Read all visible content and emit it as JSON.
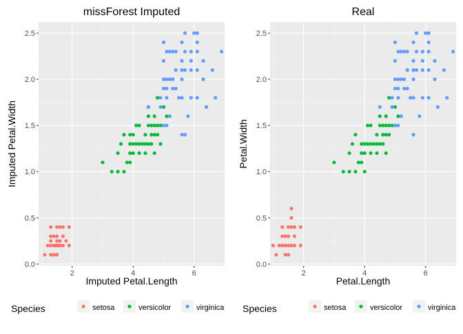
{
  "legend_title": "Species",
  "species": [
    {
      "name": "setosa",
      "color": "#F8766D"
    },
    {
      "name": "versicolor",
      "color": "#00BA38"
    },
    {
      "name": "virginica",
      "color": "#619CFF"
    }
  ],
  "chart_data": [
    {
      "type": "scatter",
      "title": "missForest Imputed",
      "xlabel": "Imputed Petal.Length",
      "ylabel": "Imputed Petal.Width",
      "xlim": [
        0.9,
        7.0
      ],
      "ylim": [
        -0.02,
        2.62
      ],
      "x_ticks": [
        2,
        4,
        6
      ],
      "y_ticks": [
        0.0,
        0.5,
        1.0,
        1.5,
        2.0,
        2.5
      ],
      "y_tick_labels": [
        "0.0",
        "0.5",
        "1.0",
        "1.5",
        "2.0",
        "2.5"
      ],
      "grid": true,
      "legend": "bottom",
      "series": [
        {
          "name": "setosa",
          "color": "#F8766D",
          "points": [
            [
              1.1,
              0.1
            ],
            [
              1.3,
              0.1
            ],
            [
              1.4,
              0.1
            ],
            [
              1.5,
              0.1
            ],
            [
              1.2,
              0.2
            ],
            [
              1.3,
              0.2
            ],
            [
              1.4,
              0.2
            ],
            [
              1.45,
              0.2
            ],
            [
              1.5,
              0.2
            ],
            [
              1.55,
              0.2
            ],
            [
              1.6,
              0.2
            ],
            [
              1.7,
              0.2
            ],
            [
              1.9,
              0.2
            ],
            [
              1.3,
              0.25
            ],
            [
              1.5,
              0.25
            ],
            [
              1.6,
              0.25
            ],
            [
              1.8,
              0.25
            ],
            [
              1.3,
              0.3
            ],
            [
              1.4,
              0.3
            ],
            [
              1.5,
              0.3
            ],
            [
              1.7,
              0.3
            ],
            [
              1.3,
              0.4
            ],
            [
              1.5,
              0.4
            ],
            [
              1.6,
              0.4
            ],
            [
              1.7,
              0.4
            ],
            [
              1.9,
              0.4
            ]
          ]
        },
        {
          "name": "versicolor",
          "color": "#00BA38",
          "points": [
            [
              3.0,
              1.1
            ],
            [
              3.3,
              1.0
            ],
            [
              3.5,
              1.0
            ],
            [
              3.7,
              1.0
            ],
            [
              3.9,
              1.1
            ],
            [
              3.8,
              1.1
            ],
            [
              3.5,
              1.2
            ],
            [
              3.9,
              1.2
            ],
            [
              4.0,
              1.2
            ],
            [
              4.2,
              1.2
            ],
            [
              4.4,
              1.2
            ],
            [
              4.7,
              1.2
            ],
            [
              3.6,
              1.3
            ],
            [
              3.9,
              1.3
            ],
            [
              4.0,
              1.3
            ],
            [
              4.1,
              1.3
            ],
            [
              4.2,
              1.3
            ],
            [
              4.3,
              1.3
            ],
            [
              4.4,
              1.3
            ],
            [
              4.5,
              1.3
            ],
            [
              4.6,
              1.3
            ],
            [
              3.7,
              1.4
            ],
            [
              4.0,
              1.4
            ],
            [
              4.4,
              1.4
            ],
            [
              4.6,
              1.4
            ],
            [
              4.7,
              1.4
            ],
            [
              4.8,
              1.4
            ],
            [
              4.1,
              1.5
            ],
            [
              4.2,
              1.5
            ],
            [
              4.5,
              1.5
            ],
            [
              4.6,
              1.5
            ],
            [
              4.7,
              1.5
            ],
            [
              4.8,
              1.5
            ],
            [
              4.9,
              1.5
            ],
            [
              5.0,
              1.5
            ],
            [
              4.5,
              1.6
            ],
            [
              4.7,
              1.6
            ],
            [
              5.1,
              1.6
            ],
            [
              5.0,
              1.7
            ],
            [
              4.5,
              1.7
            ],
            [
              4.8,
              1.8
            ],
            [
              3.9,
              1.4
            ],
            [
              4.9,
              1.3
            ]
          ]
        },
        {
          "name": "virginica",
          "color": "#619CFF",
          "points": [
            [
              5.0,
              1.5
            ],
            [
              5.1,
              1.5
            ],
            [
              4.5,
              1.7
            ],
            [
              4.9,
              1.8
            ],
            [
              5.1,
              1.8
            ],
            [
              5.5,
              1.8
            ],
            [
              5.6,
              1.8
            ],
            [
              5.9,
              1.8
            ],
            [
              6.1,
              1.8
            ],
            [
              5.0,
              1.9
            ],
            [
              5.1,
              1.9
            ],
            [
              5.3,
              1.9
            ],
            [
              5.7,
              1.4
            ],
            [
              5.6,
              1.4
            ],
            [
              5.0,
              2.0
            ],
            [
              5.1,
              2.0
            ],
            [
              5.2,
              2.0
            ],
            [
              5.3,
              2.0
            ],
            [
              5.6,
              2.0
            ],
            [
              6.3,
              2.0
            ],
            [
              5.6,
              2.1
            ],
            [
              5.7,
              2.1
            ],
            [
              5.9,
              2.1
            ],
            [
              6.1,
              2.1
            ],
            [
              5.0,
              2.2
            ],
            [
              5.6,
              2.2
            ],
            [
              5.9,
              2.2
            ],
            [
              6.3,
              2.2
            ],
            [
              5.1,
              2.3
            ],
            [
              5.2,
              2.3
            ],
            [
              5.3,
              2.3
            ],
            [
              5.4,
              2.3
            ],
            [
              5.7,
              2.3
            ],
            [
              5.9,
              2.3
            ],
            [
              6.1,
              2.3
            ],
            [
              6.9,
              2.3
            ],
            [
              5.0,
              2.4
            ],
            [
              5.6,
              2.4
            ],
            [
              6.1,
              2.4
            ],
            [
              5.7,
              2.5
            ],
            [
              6.0,
              2.5
            ],
            [
              6.1,
              2.5
            ],
            [
              5.2,
              1.6
            ],
            [
              5.8,
              1.6
            ],
            [
              6.4,
              1.7
            ],
            [
              6.7,
              1.8
            ],
            [
              5.4,
              2.1
            ],
            [
              5.4,
              1.9
            ],
            [
              4.9,
              1.7
            ],
            [
              6.6,
              2.1
            ]
          ]
        }
      ]
    },
    {
      "type": "scatter",
      "title": "Real",
      "xlabel": "Petal.Length",
      "ylabel": "Petal.Width",
      "xlim": [
        0.9,
        7.0
      ],
      "ylim": [
        -0.02,
        2.62
      ],
      "x_ticks": [
        2,
        4,
        6
      ],
      "y_ticks": [
        0.0,
        0.5,
        1.0,
        1.5,
        2.0,
        2.5
      ],
      "y_tick_labels": [
        "0.0",
        "0.5",
        "1.0",
        "1.5",
        "2.0",
        "2.5"
      ],
      "grid": true,
      "legend": "bottom",
      "series": [
        {
          "name": "setosa",
          "color": "#F8766D",
          "points": [
            [
              1.1,
              0.1
            ],
            [
              1.4,
              0.1
            ],
            [
              1.5,
              0.1
            ],
            [
              1.0,
              0.2
            ],
            [
              1.2,
              0.2
            ],
            [
              1.3,
              0.2
            ],
            [
              1.4,
              0.2
            ],
            [
              1.5,
              0.2
            ],
            [
              1.6,
              0.2
            ],
            [
              1.7,
              0.2
            ],
            [
              1.9,
              0.2
            ],
            [
              1.3,
              0.3
            ],
            [
              1.4,
              0.3
            ],
            [
              1.5,
              0.3
            ],
            [
              1.7,
              0.3
            ],
            [
              1.3,
              0.4
            ],
            [
              1.5,
              0.4
            ],
            [
              1.6,
              0.4
            ],
            [
              1.7,
              0.4
            ],
            [
              1.9,
              0.4
            ],
            [
              1.6,
              0.5
            ],
            [
              1.6,
              0.6
            ]
          ]
        },
        {
          "name": "versicolor",
          "color": "#00BA38",
          "points": [
            [
              3.0,
              1.1
            ],
            [
              3.3,
              1.0
            ],
            [
              3.5,
              1.0
            ],
            [
              3.7,
              1.0
            ],
            [
              4.0,
              1.0
            ],
            [
              3.8,
              1.1
            ],
            [
              3.9,
              1.1
            ],
            [
              3.5,
              1.2
            ],
            [
              3.9,
              1.2
            ],
            [
              4.0,
              1.2
            ],
            [
              4.2,
              1.2
            ],
            [
              4.4,
              1.2
            ],
            [
              4.7,
              1.2
            ],
            [
              3.6,
              1.3
            ],
            [
              3.9,
              1.3
            ],
            [
              4.0,
              1.3
            ],
            [
              4.1,
              1.3
            ],
            [
              4.2,
              1.3
            ],
            [
              4.3,
              1.3
            ],
            [
              4.4,
              1.3
            ],
            [
              4.5,
              1.3
            ],
            [
              4.6,
              1.3
            ],
            [
              3.7,
              1.4
            ],
            [
              4.4,
              1.4
            ],
            [
              4.6,
              1.4
            ],
            [
              4.7,
              1.4
            ],
            [
              4.8,
              1.4
            ],
            [
              4.1,
              1.5
            ],
            [
              4.2,
              1.5
            ],
            [
              4.5,
              1.5
            ],
            [
              4.6,
              1.5
            ],
            [
              4.7,
              1.5
            ],
            [
              4.8,
              1.5
            ],
            [
              4.9,
              1.5
            ],
            [
              5.0,
              1.5
            ],
            [
              4.5,
              1.6
            ],
            [
              4.7,
              1.6
            ],
            [
              5.1,
              1.6
            ],
            [
              5.0,
              1.7
            ],
            [
              4.8,
              1.8
            ]
          ]
        },
        {
          "name": "virginica",
          "color": "#619CFF",
          "points": [
            [
              5.0,
              1.5
            ],
            [
              5.1,
              1.5
            ],
            [
              4.5,
              1.7
            ],
            [
              4.9,
              1.8
            ],
            [
              5.1,
              1.8
            ],
            [
              5.5,
              1.8
            ],
            [
              5.6,
              1.8
            ],
            [
              5.9,
              1.8
            ],
            [
              6.1,
              1.8
            ],
            [
              5.0,
              1.9
            ],
            [
              5.1,
              1.9
            ],
            [
              5.3,
              1.9
            ],
            [
              5.6,
              1.4
            ],
            [
              5.0,
              2.0
            ],
            [
              5.1,
              2.0
            ],
            [
              5.2,
              2.0
            ],
            [
              5.3,
              2.0
            ],
            [
              5.6,
              2.0
            ],
            [
              6.3,
              2.0
            ],
            [
              5.6,
              2.1
            ],
            [
              5.7,
              2.1
            ],
            [
              5.9,
              2.1
            ],
            [
              6.1,
              2.1
            ],
            [
              5.0,
              2.2
            ],
            [
              5.6,
              2.2
            ],
            [
              5.9,
              2.2
            ],
            [
              6.3,
              2.2
            ],
            [
              5.1,
              2.3
            ],
            [
              5.2,
              2.3
            ],
            [
              5.3,
              2.3
            ],
            [
              5.4,
              2.3
            ],
            [
              5.7,
              2.3
            ],
            [
              5.9,
              2.3
            ],
            [
              6.1,
              2.3
            ],
            [
              6.9,
              2.3
            ],
            [
              5.0,
              2.4
            ],
            [
              5.6,
              2.4
            ],
            [
              6.1,
              2.4
            ],
            [
              5.7,
              2.5
            ],
            [
              6.0,
              2.5
            ],
            [
              6.1,
              2.5
            ],
            [
              5.2,
              1.6
            ],
            [
              5.8,
              1.6
            ],
            [
              6.4,
              1.7
            ],
            [
              6.7,
              1.8
            ],
            [
              5.4,
              2.1
            ],
            [
              5.4,
              1.9
            ],
            [
              4.9,
              1.7
            ],
            [
              6.6,
              2.1
            ]
          ]
        }
      ]
    }
  ]
}
